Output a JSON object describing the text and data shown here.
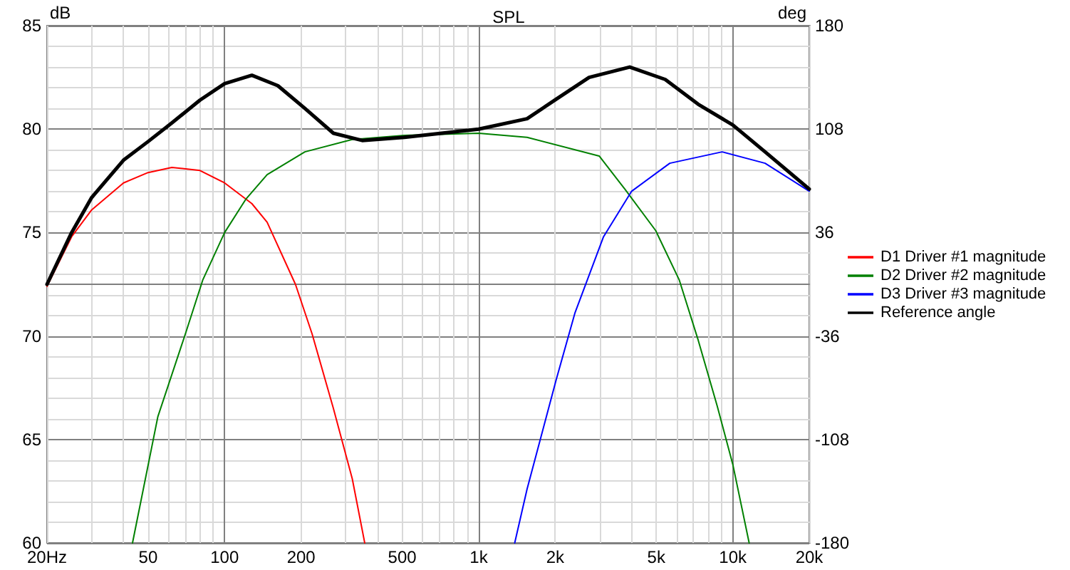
{
  "chart_data": {
    "type": "line",
    "title": "SPL",
    "ylabel": "dB",
    "y2label": "deg",
    "xlim": [
      20,
      20000
    ],
    "xticks": [
      {
        "value": 20,
        "label": "20Hz"
      },
      50,
      100,
      200,
      500,
      {
        "value": 1000,
        "label": "1k"
      },
      {
        "value": 2000,
        "label": "2k"
      },
      {
        "value": 5000,
        "label": "5k"
      },
      {
        "value": 10000,
        "label": "10k"
      },
      {
        "value": 20000,
        "label": "20k"
      }
    ],
    "ylim": [
      60,
      85
    ],
    "yticks": [
      60,
      65,
      70,
      75,
      80,
      85
    ],
    "y2lim": [
      -180,
      180
    ],
    "y2ticks": [
      -180,
      -108,
      -36,
      36,
      108,
      180
    ],
    "log": "x",
    "grid": true,
    "legend": "right",
    "marker": "none",
    "line_style": "solid",
    "series": [
      {
        "name": "D1 Driver #1 magnitude",
        "color": "#ff0000",
        "x": [
          20,
          25,
          30,
          40,
          50,
          62,
          80,
          100,
          128,
          147,
          190,
          221,
          268,
          318,
          356
        ],
        "values": [
          72.4,
          74.8,
          76.1,
          77.4,
          77.9,
          78.15,
          78.0,
          77.4,
          76.4,
          75.5,
          72.5,
          70.1,
          66.5,
          63.1,
          60
        ]
      },
      {
        "name": "D2 Driver #2 magnitude",
        "color": "#008000",
        "x": [
          43.4,
          54.6,
          70.5,
          82,
          100,
          121,
          147,
          207,
          318,
          510,
          1000,
          1550,
          2980,
          3760,
          4970,
          6160,
          7310,
          8690,
          10000,
          11600
        ],
        "values": [
          60,
          66.1,
          70.2,
          72.7,
          75.0,
          76.6,
          77.8,
          78.9,
          79.5,
          79.7,
          79.8,
          79.6,
          78.7,
          77.1,
          75.1,
          72.7,
          69.8,
          66.6,
          63.8,
          60
        ]
      },
      {
        "name": "D3 Driver #3 magnitude",
        "color": "#0000ff",
        "x": [
          1386,
          1550,
          2020,
          2390,
          3100,
          4000,
          5650,
          9080,
          13400,
          20000
        ],
        "values": [
          60,
          62.6,
          67.9,
          71.1,
          74.8,
          77.0,
          78.35,
          78.9,
          78.35,
          77.0
        ]
      },
      {
        "name": "Reference angle",
        "color": "#000000",
        "x": [
          20,
          25,
          30,
          40,
          50,
          62,
          80,
          100,
          128,
          162,
          207,
          268,
          348,
          510,
          1000,
          1550,
          2020,
          2720,
          3930,
          5420,
          7310,
          10000,
          13400,
          20000
        ],
        "values": [
          72.5,
          75.0,
          76.7,
          78.5,
          79.4,
          80.3,
          81.4,
          82.2,
          82.6,
          82.1,
          81.0,
          79.8,
          79.45,
          79.6,
          80.0,
          80.5,
          81.45,
          82.5,
          83.0,
          82.4,
          81.2,
          80.2,
          78.9,
          77.1
        ]
      }
    ]
  }
}
